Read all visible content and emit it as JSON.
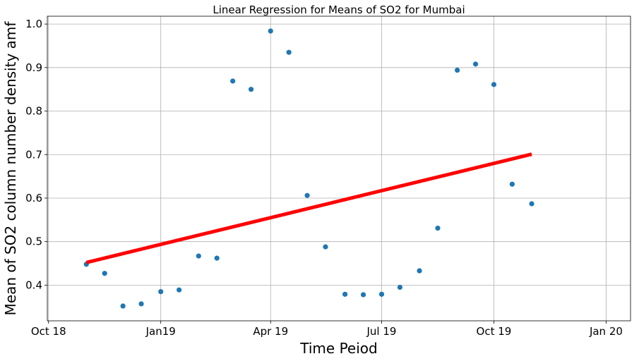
{
  "chart_data": {
    "type": "scatter",
    "title": "Linear Regression for Means of SO2 for Mumbai",
    "xlabel": "Time Peiod",
    "ylabel": "Mean of SO2 column number density amf",
    "x_ticks": [
      {
        "label": "Oct 18",
        "date": "2018-10-01"
      },
      {
        "label": "Jan19",
        "date": "2019-01-01"
      },
      {
        "label": "Apr 19",
        "date": "2019-04-01"
      },
      {
        "label": "Jul 19",
        "date": "2019-07-01"
      },
      {
        "label": "Oct 19",
        "date": "2019-10-01"
      },
      {
        "label": "Jan 20",
        "date": "2020-01-01"
      }
    ],
    "xlim": [
      "2018-09-30",
      "2020-01-21"
    ],
    "y_ticks": [
      0.4,
      0.5,
      0.6,
      0.7,
      0.8,
      0.9,
      1.0
    ],
    "ylim": [
      0.318,
      1.018
    ],
    "grid": true,
    "points": [
      {
        "x": "2018-11-01",
        "y": 0.448
      },
      {
        "x": "2018-11-16",
        "y": 0.427
      },
      {
        "x": "2018-12-01",
        "y": 0.352
      },
      {
        "x": "2018-12-16",
        "y": 0.357
      },
      {
        "x": "2019-01-01",
        "y": 0.385
      },
      {
        "x": "2019-01-16",
        "y": 0.389
      },
      {
        "x": "2019-02-01",
        "y": 0.467
      },
      {
        "x": "2019-02-16",
        "y": 0.462
      },
      {
        "x": "2019-03-01",
        "y": 0.869
      },
      {
        "x": "2019-03-16",
        "y": 0.85
      },
      {
        "x": "2019-04-01",
        "y": 0.984
      },
      {
        "x": "2019-04-16",
        "y": 0.935
      },
      {
        "x": "2019-05-01",
        "y": 0.606
      },
      {
        "x": "2019-05-16",
        "y": 0.488
      },
      {
        "x": "2019-06-01",
        "y": 0.379
      },
      {
        "x": "2019-06-16",
        "y": 0.378
      },
      {
        "x": "2019-07-01",
        "y": 0.379
      },
      {
        "x": "2019-07-16",
        "y": 0.395
      },
      {
        "x": "2019-08-01",
        "y": 0.433
      },
      {
        "x": "2019-08-16",
        "y": 0.531
      },
      {
        "x": "2019-09-01",
        "y": 0.894
      },
      {
        "x": "2019-09-16",
        "y": 0.908
      },
      {
        "x": "2019-10-01",
        "y": 0.861
      },
      {
        "x": "2019-10-16",
        "y": 0.632
      },
      {
        "x": "2019-11-01",
        "y": 0.587
      }
    ],
    "regression_line": {
      "start": {
        "x": "2018-11-01",
        "y": 0.452
      },
      "end": {
        "x": "2019-11-01",
        "y": 0.701
      }
    },
    "colors": {
      "points": "#1f77b4",
      "regression": "#ff0000",
      "grid": "#b0b0b0"
    }
  }
}
